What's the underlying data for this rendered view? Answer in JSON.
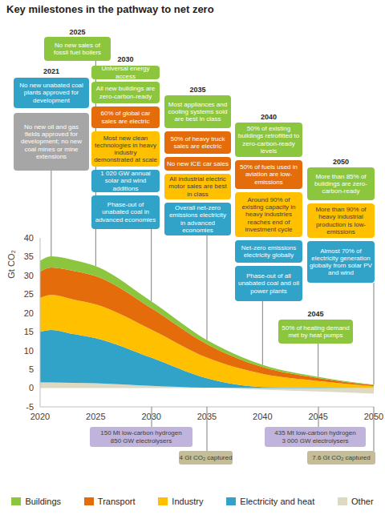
{
  "chart_data": {
    "type": "area",
    "title": "Key milestones in the pathway to net zero",
    "stacked": true,
    "legend": "bottom",
    "y_label": "Gt CO₂",
    "x": [
      2020,
      2021,
      2023,
      2025,
      2030,
      2035,
      2040,
      2045,
      2050
    ],
    "xlim": [
      2020,
      2050
    ],
    "xticks": [
      2020,
      2025,
      2030,
      2035,
      2040,
      2045,
      2050
    ],
    "ylim": [
      -5,
      40
    ],
    "yticks": [
      -5,
      0,
      5,
      10,
      15,
      20,
      25,
      30,
      35,
      40
    ],
    "series": [
      {
        "name": "Buildings",
        "color": "#8cc63f",
        "values": [
          2.9,
          3.0,
          2.9,
          2.7,
          1.8,
          1.1,
          0.6,
          0.3,
          0.1
        ]
      },
      {
        "name": "Transport",
        "color": "#e46c0a",
        "values": [
          7.0,
          7.3,
          7.6,
          7.5,
          5.7,
          3.6,
          1.8,
          0.8,
          0.3
        ]
      },
      {
        "name": "Industry",
        "color": "#ffc000",
        "values": [
          9.0,
          9.3,
          9.2,
          9.0,
          7.5,
          5.5,
          3.5,
          1.8,
          0.5
        ]
      },
      {
        "name": "Electricity and heat",
        "color": "#31a2c8",
        "values": [
          13.5,
          14.0,
          13.0,
          12.0,
          7.5,
          2.5,
          0.3,
          0.1,
          0.0
        ]
      },
      {
        "name": "Other",
        "color": "#ddd9c3",
        "values": [
          1.5,
          1.5,
          1.4,
          1.3,
          0.6,
          0.1,
          -0.4,
          -0.9,
          -1.5
        ]
      }
    ]
  },
  "milestones": [
    {
      "year": 2021,
      "boxes": [
        {
          "text": "No new unabated coal plants approved for development",
          "color": "#31a2c8"
        },
        {
          "text": "No new oil and gas fields approved for development; no new coal mines or mine extensions",
          "color": "#a6a6a6"
        }
      ]
    },
    {
      "year": 2025,
      "boxes": [
        {
          "text": "No new sales of fossil fuel boilers",
          "color": "#8cc63f"
        }
      ]
    },
    {
      "year": 2030,
      "boxes": [
        {
          "text": "Universal energy access",
          "color": "#8cc63f"
        },
        {
          "text": "All new buildings are zero-carbon-ready",
          "color": "#8cc63f"
        },
        {
          "text": "60% of global car sales are electric",
          "color": "#e46c0a"
        },
        {
          "text": "Most new clean technologies in heavy industry demonstrated at scale",
          "color": "#ffc000"
        },
        {
          "text": "1 020 GW annual solar and wind additions",
          "color": "#31a2c8"
        },
        {
          "text": "Phase-out of unabated coal in advanced economies",
          "color": "#31a2c8"
        }
      ]
    },
    {
      "year": 2035,
      "boxes": [
        {
          "text": "Most appliances and cooling systems sold are best in class",
          "color": "#8cc63f"
        },
        {
          "text": "50% of heavy truck sales are electric",
          "color": "#e46c0a"
        },
        {
          "text": "No new ICE car sales",
          "color": "#e46c0a"
        },
        {
          "text": "All industrial electric motor sales are best in class",
          "color": "#ffc000"
        },
        {
          "text": "Overall net-zero emissions electricity in advanced economies",
          "color": "#31a2c8"
        }
      ]
    },
    {
      "year": 2040,
      "boxes": [
        {
          "text": "50% of existing buildings retrofitted to zero-carbon-ready levels",
          "color": "#8cc63f"
        },
        {
          "text": "50% of fuels used in aviation are low-emissions",
          "color": "#e46c0a"
        },
        {
          "text": "Around 90% of existing capacity in heavy industries reaches end of investment cycle",
          "color": "#ffc000"
        },
        {
          "text": "Net-zero emissions electricity globally",
          "color": "#31a2c8"
        },
        {
          "text": "Phase-out of all unabated coal and oil power plants",
          "color": "#31a2c8"
        }
      ]
    },
    {
      "year": 2045,
      "boxes": [
        {
          "text": "50% of heating demand met by heat pumps",
          "color": "#8cc63f"
        }
      ]
    },
    {
      "year": 2050,
      "boxes": [
        {
          "text": "More than 85% of buildings are zero-carbon-ready",
          "color": "#8cc63f"
        },
        {
          "text": "More than 90% of heavy industrial production is low-emissions",
          "color": "#ffc000"
        },
        {
          "text": "Almost 70% of electricity generation globally from solar PV and wind",
          "color": "#31a2c8"
        }
      ]
    }
  ],
  "below_axis_boxes": [
    {
      "lines": [
        "150 Mt low-carbon hydrogen",
        "850 GW electrolysers"
      ],
      "color": "#c0b4dc"
    },
    {
      "lines": [
        "4 Gt CO₂ captured"
      ],
      "color": "#c4bd97"
    },
    {
      "lines": [
        "435 Mt low-carbon hydrogen",
        "3 000 GW electrolysers"
      ],
      "color": "#c0b4dc"
    },
    {
      "lines": [
        "7.6 Gt CO₂ captured"
      ],
      "color": "#c4bd97"
    }
  ]
}
